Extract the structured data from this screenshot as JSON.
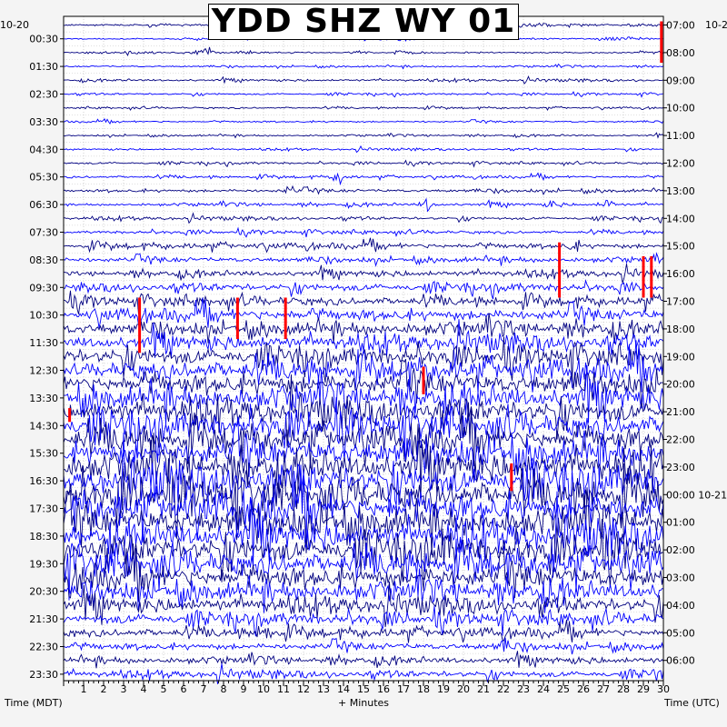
{
  "chart_data": {
    "type": "line",
    "title": "YDD SHZ WY 01",
    "xlabel": "+ Minutes",
    "ylabel_left": "Time (MDT)",
    "ylabel_right": "Time (UTC)",
    "xlim": [
      0,
      30
    ],
    "x_ticks": [
      "1",
      "2",
      "3",
      "4",
      "5",
      "6",
      "7",
      "8",
      "9",
      "10",
      "11",
      "12",
      "13",
      "14",
      "15",
      "16",
      "17",
      "18",
      "19",
      "20",
      "21",
      "22",
      "23",
      "24",
      "25",
      "26",
      "27",
      "28",
      "29",
      "30"
    ],
    "date_left": "10-20",
    "date_right": "10-2",
    "date_right_next": "10-21",
    "left_labels": [
      "00:30",
      "01:30",
      "02:30",
      "03:30",
      "04:30",
      "05:30",
      "06:30",
      "07:30",
      "08:30",
      "09:30",
      "10:30",
      "11:30",
      "12:30",
      "13:30",
      "14:30",
      "15:30",
      "16:30",
      "17:30",
      "18:30",
      "19:30",
      "20:30",
      "21:30",
      "22:30",
      "23:30"
    ],
    "right_labels": [
      "07:00",
      "08:00",
      "09:00",
      "10:00",
      "11:00",
      "12:00",
      "13:00",
      "14:00",
      "15:00",
      "16:00",
      "17:00",
      "18:00",
      "19:00",
      "20:00",
      "21:00",
      "22:00",
      "23:00",
      "00:00",
      "01:00",
      "02:00",
      "03:00",
      "04:00",
      "05:00",
      "06:00"
    ],
    "trace_count": 48,
    "minutes_per_trace": 30,
    "trace_colors": [
      "#000080",
      "#0000ff"
    ],
    "clip_color": "#ff0000",
    "amplitude_profile": [
      0.6,
      0.5,
      0.5,
      0.5,
      0.6,
      0.5,
      0.5,
      0.5,
      0.5,
      0.5,
      0.6,
      0.7,
      0.9,
      0.8,
      0.8,
      0.9,
      1.5,
      1.4,
      1.6,
      2.0,
      2.4,
      3.2,
      3.5,
      3.8,
      4.5,
      5.5,
      5.8,
      6.2,
      6.0,
      6.4,
      6.8,
      7.2,
      7.5,
      7.8,
      8.2,
      8.0,
      7.6,
      7.2,
      7.0,
      6.6,
      6.2,
      5.0,
      3.8,
      3.0,
      2.4,
      1.9,
      1.8,
      1.7
    ],
    "events": [
      {
        "trace": 0,
        "minute": 10.5,
        "amp": 3
      },
      {
        "trace": 2,
        "minute": 6.9,
        "amp": 7
      },
      {
        "trace": 2,
        "minute": 7.3,
        "amp": 5
      },
      {
        "trace": 11,
        "minute": 13.8,
        "amp": 9
      },
      {
        "trace": 12,
        "minute": 11.3,
        "amp": 5
      },
      {
        "trace": 13,
        "minute": 18.2,
        "amp": 7
      },
      {
        "trace": 13,
        "minute": 24.5,
        "amp": 6
      },
      {
        "trace": 13,
        "minute": 27.2,
        "amp": 6
      },
      {
        "trace": 16,
        "minute": 25.5,
        "amp": 6
      },
      {
        "trace": 30,
        "minute": 17.8,
        "amp": 14
      },
      {
        "trace": 38,
        "minute": 19.0,
        "amp": 16
      },
      {
        "trace": 40,
        "minute": 1.2,
        "amp": 9
      },
      {
        "trace": 41,
        "minute": 24.5,
        "amp": 7
      },
      {
        "trace": 42,
        "minute": 1.8,
        "amp": 5
      },
      {
        "trace": 44,
        "minute": 10.1,
        "amp": 18
      },
      {
        "trace": 45,
        "minute": 22.0,
        "amp": 7
      },
      {
        "trace": 47,
        "minute": 29.6,
        "amp": 6
      }
    ],
    "clipped": [
      {
        "trace": 0,
        "minute": 29.9,
        "span_traces": 3
      },
      {
        "trace": 16,
        "minute": 24.8,
        "span_traces": 4
      },
      {
        "trace": 17,
        "minute": 29.0,
        "span_traces": 3
      },
      {
        "trace": 17,
        "minute": 29.4,
        "span_traces": 3
      },
      {
        "trace": 20,
        "minute": 3.8,
        "span_traces": 4
      },
      {
        "trace": 20,
        "minute": 8.7,
        "span_traces": 3
      },
      {
        "trace": 20,
        "minute": 11.1,
        "span_traces": 3
      },
      {
        "trace": 25,
        "minute": 18.0,
        "span_traces": 2
      },
      {
        "trace": 28,
        "minute": 0.3,
        "span_traces": 1
      },
      {
        "trace": 32,
        "minute": 22.4,
        "span_traces": 2
      }
    ],
    "grid": true
  }
}
